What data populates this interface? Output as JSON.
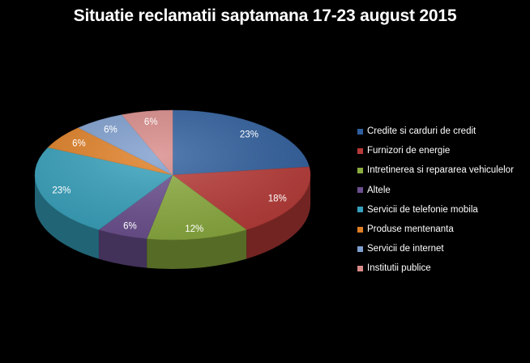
{
  "chart_data": {
    "type": "pie",
    "title": "Situatie reclamatii saptamana 17-23 august 2015",
    "slices": [
      {
        "label": "Credite si carduri de credit",
        "value": 23,
        "display": "23%",
        "color": "#2f5f9e"
      },
      {
        "label": "Furnizori de energie",
        "value": 18,
        "display": "18%",
        "color": "#b83a37"
      },
      {
        "label": "Intretinerea si repararea vehiculelor",
        "value": 12,
        "display": "12%",
        "color": "#8bac3e"
      },
      {
        "label": "Altele",
        "value": 6,
        "display": "6%",
        "color": "#6b4f8f"
      },
      {
        "label": "Servicii de telefonie mobila",
        "value": 23,
        "display": "23%",
        "color": "#35a1bc"
      },
      {
        "label": "Produse mentenanta",
        "value": 6,
        "display": "6%",
        "color": "#e07f24"
      },
      {
        "label": "Servicii de internet",
        "value": 6,
        "display": "6%",
        "color": "#7f9fcf"
      },
      {
        "label": "Institutii publice",
        "value": 6,
        "display": "6%",
        "color": "#d98b89"
      }
    ],
    "legend_position": "right",
    "style": "3d-tilted"
  }
}
